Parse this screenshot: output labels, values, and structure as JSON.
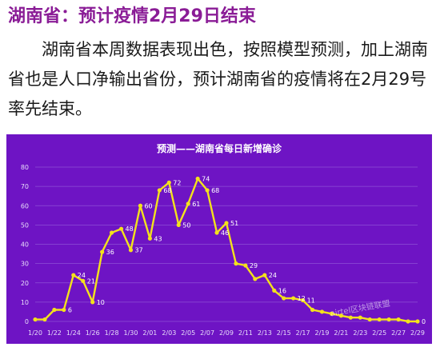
{
  "headline": "湖南省：预计疫情2月29日结束",
  "paragraph": "湖南省本周数据表现出色，按照模型预测，加上湖南省也是人口净输出省份，预计湖南省的疫情将在2月29号率先结束。",
  "watermark": "airtel区块链联盟",
  "colors": {
    "headline": "#8a1c96",
    "chart_background": "#6e14c4",
    "line": "#f3e21c",
    "grid": "#8e4fd6"
  },
  "chart_data": {
    "type": "line",
    "title": "预测——湖南省每日新增确诊",
    "xlabel": "",
    "ylabel": "",
    "ylim": [
      0,
      80
    ],
    "yticks": [
      0,
      10,
      20,
      30,
      40,
      50,
      60,
      70,
      80
    ],
    "grid": true,
    "legend": "none",
    "x": [
      "1/20",
      "1/21",
      "1/22",
      "1/23",
      "1/24",
      "1/25",
      "1/26",
      "1/27",
      "1/28",
      "1/29",
      "1/30",
      "1/31",
      "2/01",
      "2/02",
      "2/03",
      "2/04",
      "2/05",
      "2/06",
      "2/07",
      "2/08",
      "2/09",
      "2/10",
      "2/11",
      "2/12",
      "2/13",
      "2/14",
      "2/15",
      "2/16",
      "2/17",
      "2/18",
      "2/19",
      "2/20",
      "2/21",
      "2/22",
      "2/23",
      "2/24",
      "2/25",
      "2/26",
      "2/27",
      "2/28",
      "2/29"
    ],
    "xtick_labels": [
      "1/20",
      "1/22",
      "1/24",
      "1/26",
      "1/28",
      "1/30",
      "2/01",
      "2/03",
      "2/05",
      "2/07",
      "2/09",
      "2/11",
      "2/13",
      "2/15",
      "2/17",
      "2/19",
      "2/21",
      "2/23",
      "2/25",
      "2/27",
      "2/29"
    ],
    "values": [
      1,
      1,
      6,
      6,
      24,
      21,
      10,
      36,
      46,
      48,
      37,
      60,
      43,
      68,
      72,
      50,
      61,
      74,
      68,
      46,
      51,
      30,
      29,
      22,
      24,
      16,
      12,
      12,
      11,
      6,
      5,
      4,
      3,
      2,
      2,
      1,
      1,
      1,
      1,
      0,
      0
    ],
    "data_labels": [
      {
        "i": 3,
        "text": "6"
      },
      {
        "i": 4,
        "text": "24"
      },
      {
        "i": 5,
        "text": "21"
      },
      {
        "i": 6,
        "text": "10"
      },
      {
        "i": 7,
        "text": "36"
      },
      {
        "i": 9,
        "text": "48"
      },
      {
        "i": 10,
        "text": "37"
      },
      {
        "i": 11,
        "text": "60"
      },
      {
        "i": 12,
        "text": "43"
      },
      {
        "i": 13,
        "text": "68"
      },
      {
        "i": 14,
        "text": "72"
      },
      {
        "i": 15,
        "text": "50"
      },
      {
        "i": 16,
        "text": "61"
      },
      {
        "i": 17,
        "text": "74"
      },
      {
        "i": 18,
        "text": "68"
      },
      {
        "i": 19,
        "text": "46"
      },
      {
        "i": 20,
        "text": "51"
      },
      {
        "i": 22,
        "text": "29"
      },
      {
        "i": 24,
        "text": "24"
      },
      {
        "i": 25,
        "text": "16"
      },
      {
        "i": 27,
        "text": "12"
      },
      {
        "i": 28,
        "text": "11"
      },
      {
        "i": 40,
        "text": "0"
      }
    ]
  }
}
